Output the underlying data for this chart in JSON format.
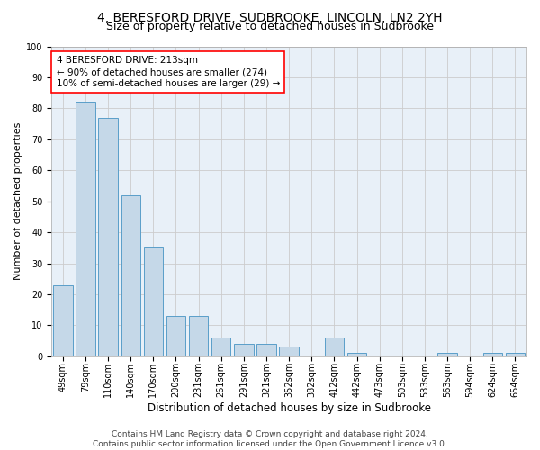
{
  "title": "4, BERESFORD DRIVE, SUDBROOKE, LINCOLN, LN2 2YH",
  "subtitle": "Size of property relative to detached houses in Sudbrooke",
  "xlabel": "Distribution of detached houses by size in Sudbrooke",
  "ylabel": "Number of detached properties",
  "categories": [
    "49sqm",
    "79sqm",
    "110sqm",
    "140sqm",
    "170sqm",
    "200sqm",
    "231sqm",
    "261sqm",
    "291sqm",
    "321sqm",
    "352sqm",
    "382sqm",
    "412sqm",
    "442sqm",
    "473sqm",
    "503sqm",
    "533sqm",
    "563sqm",
    "594sqm",
    "624sqm",
    "654sqm"
  ],
  "values": [
    23,
    82,
    77,
    52,
    35,
    13,
    13,
    6,
    4,
    4,
    3,
    0,
    6,
    1,
    0,
    0,
    0,
    1,
    0,
    1,
    1
  ],
  "bar_color": "#c5d8e8",
  "bar_edge_color": "#5a9ec9",
  "annotation_line1": "4 BERESFORD DRIVE: 213sqm",
  "annotation_line2": "← 90% of detached houses are smaller (274)",
  "annotation_line3": "10% of semi-detached houses are larger (29) →",
  "annotation_box_color": "white",
  "annotation_box_edge_color": "red",
  "ylim": [
    0,
    100
  ],
  "yticks": [
    0,
    10,
    20,
    30,
    40,
    50,
    60,
    70,
    80,
    90,
    100
  ],
  "grid_color": "#cccccc",
  "bg_color": "#e8f0f8",
  "footer": "Contains HM Land Registry data © Crown copyright and database right 2024.\nContains public sector information licensed under the Open Government Licence v3.0.",
  "title_fontsize": 10,
  "subtitle_fontsize": 9,
  "xlabel_fontsize": 8.5,
  "ylabel_fontsize": 8,
  "tick_fontsize": 7,
  "annotation_fontsize": 7.5,
  "footer_fontsize": 6.5
}
